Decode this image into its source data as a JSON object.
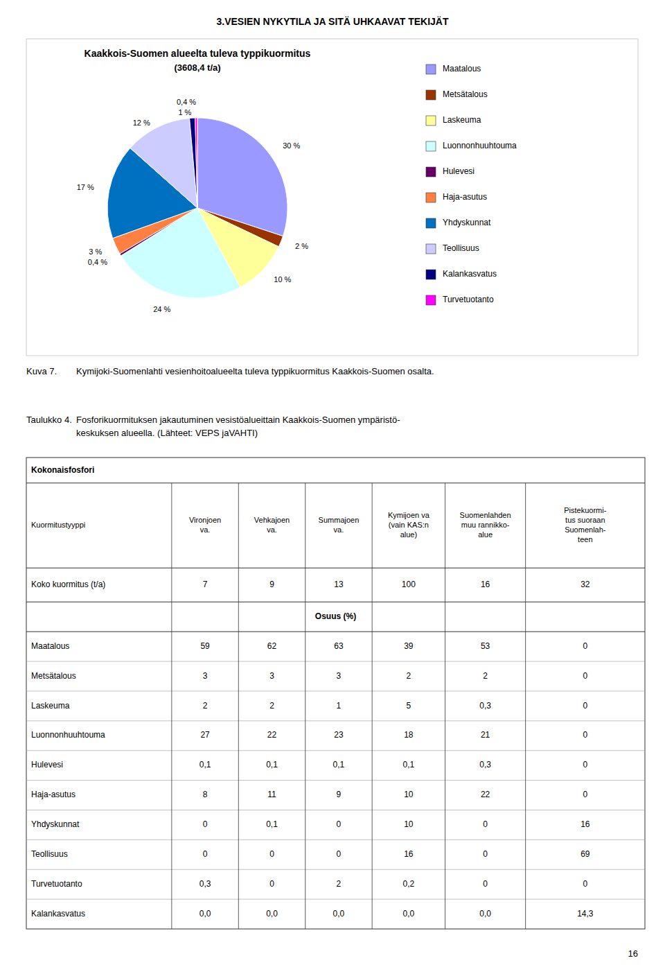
{
  "page_title": "3.VESIEN NYKYTILA JA SITÄ UHKAAVAT TEKIJÄT",
  "chart_data": {
    "type": "pie",
    "title": "Kaakkois-Suomen alueelta tuleva typpikuormitus",
    "subtitle": "(3608,4 t/a)",
    "categories": [
      "Maatalous",
      "Metsätalous",
      "Laskeuma",
      "Luonnonhuuhtouma",
      "Hulevesi",
      "Haja-asutus",
      "Yhdyskunnat",
      "Teollisuus",
      "Kalankasvatus",
      "Turvetuotanto"
    ],
    "values": [
      30,
      2,
      10,
      24,
      0.4,
      3,
      17,
      12,
      1,
      0.4
    ],
    "value_labels": [
      "30 %",
      "2 %",
      "10 %",
      "24 %",
      "0,4 %",
      "3 %",
      "17 %",
      "12 %",
      "1 %",
      "0,4 %"
    ],
    "colors": [
      "#9999FF",
      "#993300",
      "#FFFF99",
      "#CCFFFF",
      "#660066",
      "#FF8040",
      "#0070C0",
      "#CCCCFF",
      "#000080",
      "#FF00FF"
    ],
    "data_labels": true,
    "legend": "right"
  },
  "caption": {
    "label": "Kuva 7.",
    "text": "Kymijoki-Suomenlahti vesienhoitoalueelta tuleva typpikuormitus Kaakkois-Suomen osalta."
  },
  "table_caption": {
    "label": "Taulukko 4.",
    "text": "Fosforikuormituksen jakautuminen vesistöalueittain Kaakkois-Suomen ympäristö-\nkeskuksen alueella. (Lähteet: VEPS jaVAHTI)"
  },
  "table": {
    "title": "Kokonaisfosfori",
    "columns": [
      "Kuormitustyyppi",
      "Vironjoen\nva.",
      "Vehkajoen\nva.",
      "Summajoen\nva.",
      "Kymijoen va\n(vain KAS:n\nalue)",
      "Suomenlahden\nmuu rannikko-\nalue",
      "Pistekuormi-\ntus suoraan\nSuomenlah-\nteen"
    ],
    "total_row": [
      "Koko kuormitus (t/a)",
      "7",
      "9",
      "13",
      "100",
      "16",
      "32"
    ],
    "section": "Osuus (%)",
    "rows": [
      [
        "Maatalous",
        "59",
        "62",
        "63",
        "39",
        "53",
        "0"
      ],
      [
        "Metsätalous",
        "3",
        "3",
        "3",
        "2",
        "2",
        "0"
      ],
      [
        "Laskeuma",
        "2",
        "2",
        "1",
        "5",
        "0,3",
        "0"
      ],
      [
        "Luonnonhuuhtouma",
        "27",
        "22",
        "23",
        "18",
        "21",
        "0"
      ],
      [
        "Hulevesi",
        "0,1",
        "0,1",
        "0,1",
        "0,1",
        "0,3",
        "0"
      ],
      [
        "Haja-asutus",
        "8",
        "11",
        "9",
        "10",
        "22",
        "0"
      ],
      [
        "Yhdyskunnat",
        "0",
        "0,1",
        "0",
        "10",
        "0",
        "16"
      ],
      [
        "Teollisuus",
        "0",
        "0",
        "0",
        "16",
        "0",
        "69"
      ],
      [
        "Turvetuotanto",
        "0,3",
        "0",
        "2",
        "0,2",
        "0",
        "0"
      ],
      [
        "Kalankasvatus",
        "0,0",
        "0,0",
        "0,0",
        "0,0",
        "0,0",
        "14,3"
      ]
    ]
  },
  "page_number": "16"
}
